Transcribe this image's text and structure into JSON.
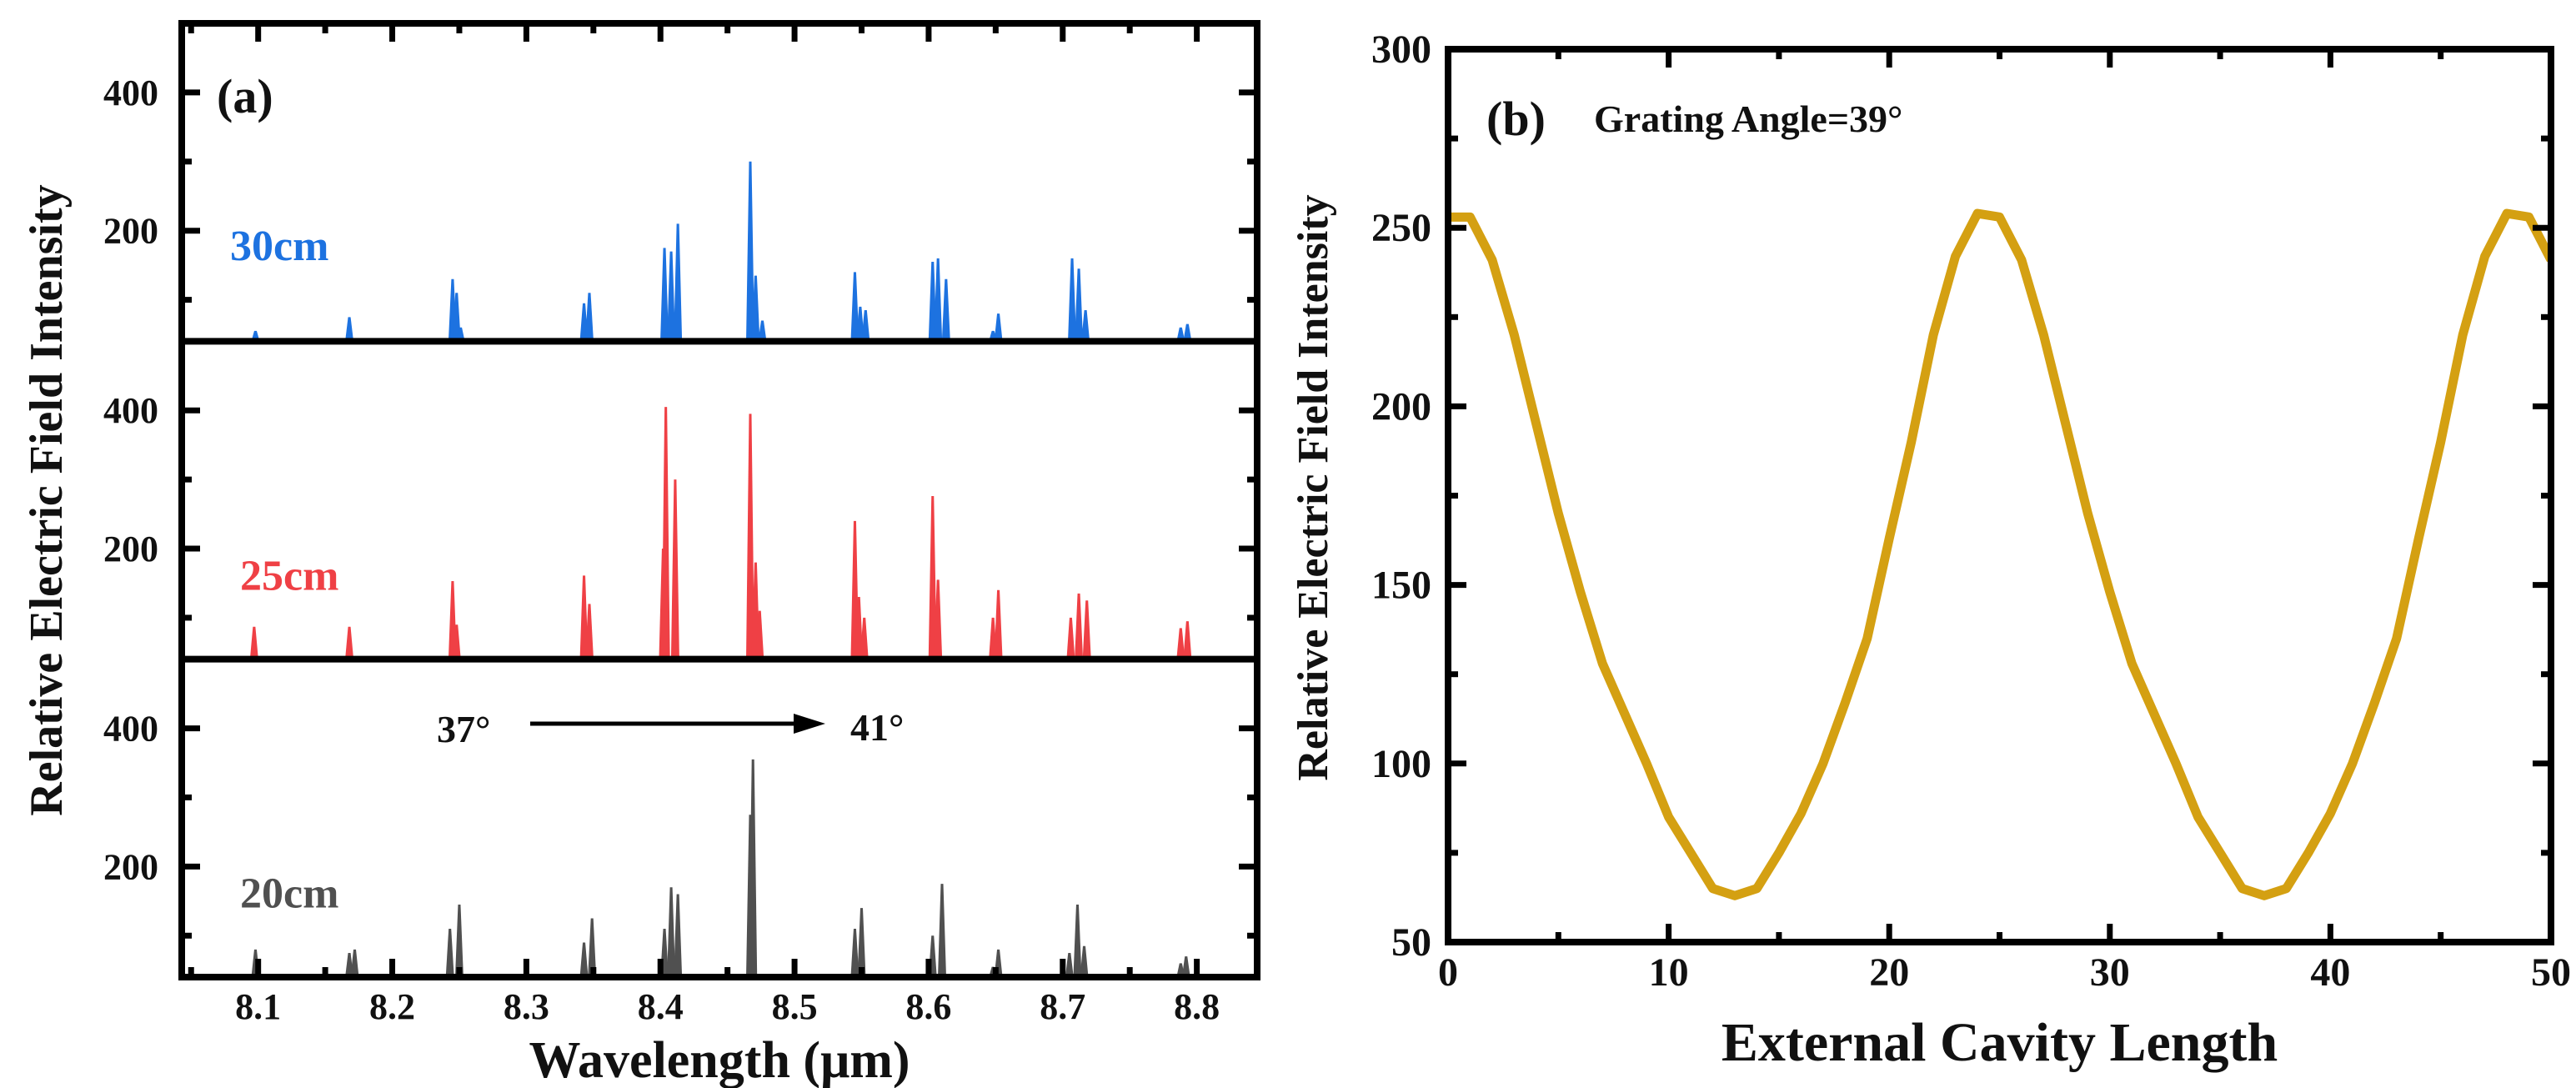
{
  "chart_data": [
    {
      "type": "line",
      "panel_label": "(a)",
      "xlabel": "Wavelength (μm)",
      "ylabel": "Relative Electric Field Intensity",
      "xlim": [
        8.043,
        8.845
      ],
      "xticks": [
        8.1,
        8.2,
        8.3,
        8.4,
        8.5,
        8.6,
        8.7,
        8.8
      ],
      "xticklabels": [
        "8.1",
        "8.2",
        "8.3",
        "8.4",
        "8.5",
        "8.6",
        "8.7",
        "8.8"
      ],
      "annotation": {
        "start": "37°",
        "end": "41°"
      },
      "subplots": [
        {
          "name": "30cm",
          "color": "#1d72e0",
          "ylim": [
            40,
            500
          ],
          "yticks": [
            200,
            400
          ],
          "yticklabels": [
            "200",
            "400"
          ],
          "peaks": [
            [
              8.098,
              55
            ],
            [
              8.168,
              75
            ],
            [
              8.245,
              130
            ],
            [
              8.248,
              110
            ],
            [
              8.251,
              60
            ],
            [
              8.343,
              95
            ],
            [
              8.347,
              110
            ],
            [
              8.403,
              175
            ],
            [
              8.408,
              170
            ],
            [
              8.413,
              210
            ],
            [
              8.467,
              300
            ],
            [
              8.471,
              135
            ],
            [
              8.476,
              70
            ],
            [
              8.545,
              140
            ],
            [
              8.549,
              90
            ],
            [
              8.553,
              85
            ],
            [
              8.603,
              155
            ],
            [
              8.607,
              160
            ],
            [
              8.613,
              130
            ],
            [
              8.648,
              55
            ],
            [
              8.652,
              80
            ],
            [
              8.707,
              160
            ],
            [
              8.712,
              145
            ],
            [
              8.717,
              85
            ],
            [
              8.788,
              60
            ],
            [
              8.793,
              65
            ]
          ]
        },
        {
          "name": "25cm",
          "color": "#ef4045",
          "ylim": [
            40,
            500
          ],
          "yticks": [
            200,
            400
          ],
          "yticklabels": [
            "200",
            "400"
          ],
          "peaks": [
            [
              8.097,
              87
            ],
            [
              8.168,
              87
            ],
            [
              8.245,
              153
            ],
            [
              8.248,
              90
            ],
            [
              8.343,
              161
            ],
            [
              8.347,
              120
            ],
            [
              8.402,
              200
            ],
            [
              8.404,
              405
            ],
            [
              8.411,
              300
            ],
            [
              8.467,
              395
            ],
            [
              8.471,
              180
            ],
            [
              8.474,
              110
            ],
            [
              8.545,
              240
            ],
            [
              8.548,
              130
            ],
            [
              8.552,
              100
            ],
            [
              8.603,
              276
            ],
            [
              8.607,
              155
            ],
            [
              8.648,
              100
            ],
            [
              8.652,
              140
            ],
            [
              8.706,
              100
            ],
            [
              8.712,
              135
            ],
            [
              8.718,
              125
            ],
            [
              8.788,
              85
            ],
            [
              8.793,
              95
            ]
          ]
        },
        {
          "name": "20cm",
          "color": "#505050",
          "ylim": [
            40,
            500
          ],
          "yticks": [
            200,
            400
          ],
          "yticklabels": [
            "200",
            "400"
          ],
          "peaks": [
            [
              8.098,
              80
            ],
            [
              8.168,
              75
            ],
            [
              8.172,
              80
            ],
            [
              8.243,
              110
            ],
            [
              8.25,
              145
            ],
            [
              8.343,
              90
            ],
            [
              8.349,
              125
            ],
            [
              8.403,
              110
            ],
            [
              8.408,
              170
            ],
            [
              8.413,
              160
            ],
            [
              8.467,
              275
            ],
            [
              8.469,
              355
            ],
            [
              8.545,
              110
            ],
            [
              8.55,
              140
            ],
            [
              8.603,
              100
            ],
            [
              8.61,
              175
            ],
            [
              8.648,
              55
            ],
            [
              8.652,
              80
            ],
            [
              8.705,
              75
            ],
            [
              8.711,
              145
            ],
            [
              8.716,
              85
            ],
            [
              8.788,
              60
            ],
            [
              8.792,
              70
            ]
          ]
        }
      ]
    },
    {
      "type": "line",
      "panel_label": "(b)",
      "annotation": "Grating Angle=39°",
      "xlabel": "External Cavity Length",
      "ylabel": "Relative Electric Field Intensity",
      "xlim": [
        0,
        50
      ],
      "ylim": [
        50,
        300
      ],
      "xticks": [
        0,
        10,
        20,
        30,
        40,
        50
      ],
      "xticklabels": [
        "0",
        "10",
        "20",
        "30",
        "40",
        "50"
      ],
      "yticks": [
        50,
        100,
        150,
        200,
        250,
        300
      ],
      "yticklabels": [
        "50",
        "100",
        "150",
        "200",
        "250",
        "300"
      ],
      "color": "#d4a012",
      "x": [
        0,
        1,
        2,
        3,
        4,
        5,
        6,
        7,
        8,
        9,
        10,
        11,
        12,
        13,
        14,
        15,
        16,
        17,
        18,
        19,
        20,
        21,
        22,
        23,
        24,
        25,
        26,
        27,
        28,
        29,
        30,
        31,
        32,
        33,
        34,
        35,
        36,
        37,
        38,
        39,
        40,
        41,
        42,
        43,
        44,
        45,
        46,
        47,
        48,
        49,
        50
      ],
      "y": [
        253,
        253,
        241,
        220,
        195,
        170,
        148,
        128,
        114,
        100,
        85,
        75,
        65,
        63,
        65,
        75,
        86,
        100,
        117,
        135,
        163,
        190,
        220,
        242,
        254,
        253,
        241,
        220,
        195,
        170,
        148,
        128,
        114,
        100,
        85,
        75,
        65,
        63,
        65,
        75,
        86,
        100,
        117,
        135,
        163,
        190,
        220,
        242,
        254,
        253,
        241
      ]
    }
  ]
}
